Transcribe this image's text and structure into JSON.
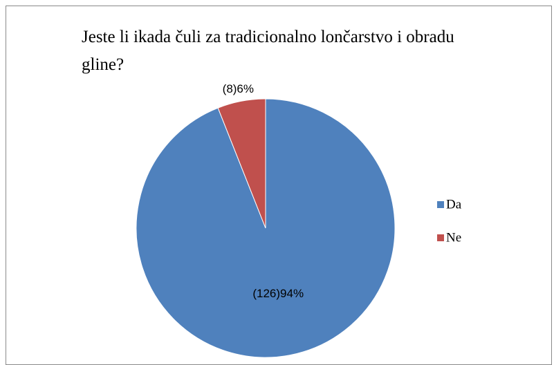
{
  "chart_data": {
    "type": "pie",
    "title": "Jeste li ikada čuli za tradicionalno lončarstvo i obradu gline?",
    "categories": [
      "Da",
      "Ne"
    ],
    "values": [
      94,
      6
    ],
    "value_labels": [
      "(126)94%",
      "(8)6%"
    ],
    "colors": [
      "#4f81bd",
      "#c0504d"
    ],
    "legend": "right"
  }
}
